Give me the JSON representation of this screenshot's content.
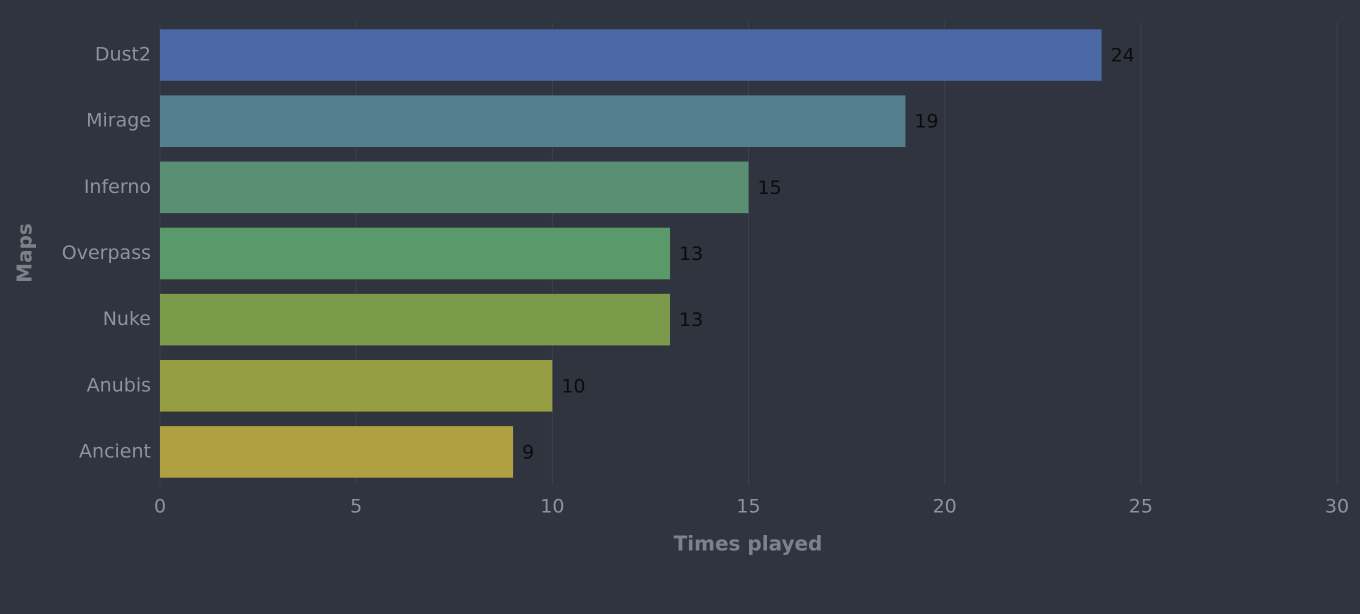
{
  "chart_data": {
    "type": "barh",
    "categories": [
      "Dust2",
      "Mirage",
      "Inferno",
      "Overpass",
      "Nuke",
      "Anubis",
      "Ancient"
    ],
    "values": [
      24,
      19,
      15,
      13,
      13,
      10,
      9
    ],
    "colors": [
      "#4a68a5",
      "#557f8d",
      "#5a8f73",
      "#5a9a6a",
      "#7a9a4a",
      "#969e44",
      "#b0a040"
    ],
    "xlabel": "Times played",
    "ylabel": "Maps",
    "xlim": [
      0,
      30
    ],
    "xticks": [
      0,
      5,
      10,
      15,
      20,
      25,
      30
    ],
    "grid": true
  }
}
